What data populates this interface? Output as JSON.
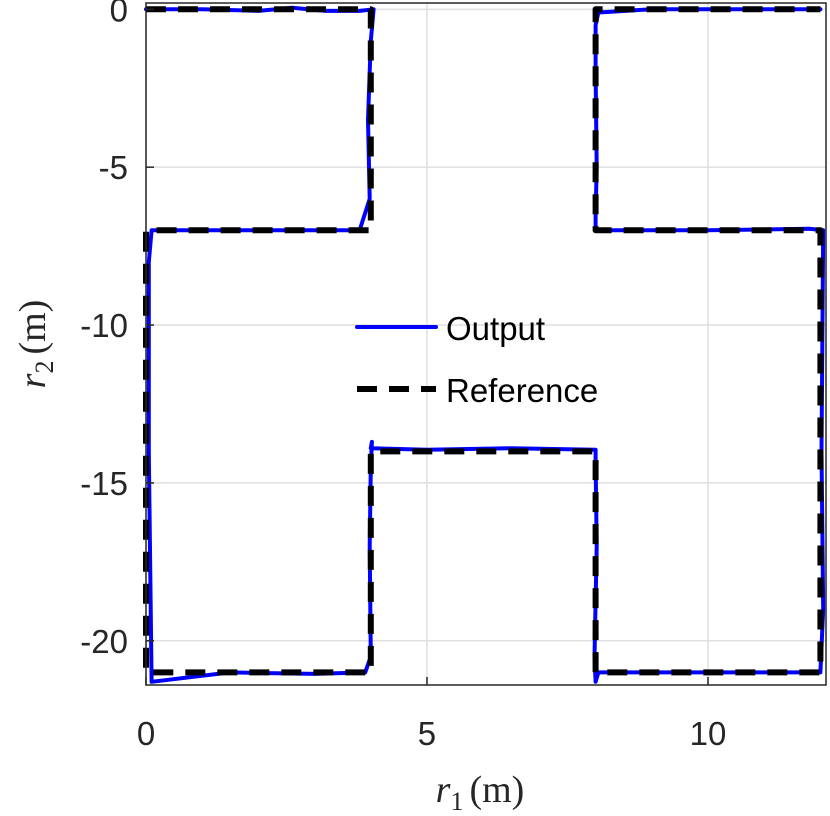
{
  "chart_data": {
    "type": "line",
    "title": "",
    "xlabel": "r_1 (m)",
    "ylabel": "r_2 (m)",
    "xlabel_parts": {
      "var": "r",
      "sub": "1",
      "unit": "(m)"
    },
    "ylabel_parts": {
      "var": "r",
      "sub": "2",
      "unit": "(m)"
    },
    "xlim": [
      0,
      12.1
    ],
    "ylim": [
      -21.4,
      0.2
    ],
    "xticks": [
      0,
      5,
      10
    ],
    "yticks": [
      0,
      -5,
      -10,
      -15,
      -20
    ],
    "xtick_labels": [
      "0",
      "5",
      "10"
    ],
    "ytick_labels": [
      "0",
      "-5",
      "-10",
      "-15",
      "-20"
    ],
    "grid": true,
    "legend": {
      "placement": "center",
      "entries": [
        "Output",
        "Reference"
      ]
    },
    "series": [
      {
        "name": "Output",
        "color": "#0000ff",
        "style": "solid",
        "x": [
          0.0,
          1.0,
          2.0,
          2.6,
          3.2,
          3.8,
          4.05,
          4.0,
          3.95,
          3.98,
          3.8,
          2.0,
          0.1,
          0.05,
          0.05,
          0.1,
          1.5,
          3.0,
          3.9,
          4.0,
          3.98,
          4.0,
          4.02,
          4.0,
          5.0,
          6.5,
          8.0,
          8.0,
          8.02,
          7.98,
          8.0,
          8.05,
          8.5,
          10.0,
          12.0,
          12.05,
          12.02,
          12.05,
          11.8,
          10.0,
          8.0,
          8.0,
          8.02,
          8.0,
          8.0,
          8.05,
          9.0,
          10.5,
          12.0
        ],
        "y": [
          0.0,
          0.0,
          -0.05,
          0.05,
          -0.05,
          -0.05,
          0.0,
          -1.0,
          -3.5,
          -6.0,
          -7.0,
          -7.0,
          -7.0,
          -8.0,
          -14.0,
          -21.3,
          -21.0,
          -21.05,
          -21.0,
          -20.5,
          -17.0,
          -14.5,
          -13.7,
          -13.9,
          -13.95,
          -13.9,
          -13.95,
          -14.3,
          -17.0,
          -20.5,
          -21.3,
          -21.0,
          -21.0,
          -21.0,
          -21.0,
          -19.0,
          -14.0,
          -7.0,
          -6.95,
          -7.0,
          -7.0,
          -6.5,
          -5.0,
          -2.0,
          -0.5,
          -0.1,
          0.0,
          0.0,
          0.0
        ]
      },
      {
        "name": "Reference",
        "color": "#000000",
        "style": "dashed",
        "x": [
          0,
          4,
          4,
          0,
          0,
          4,
          4,
          8,
          8,
          12,
          12,
          8,
          8,
          12
        ],
        "y": [
          0,
          0,
          -7,
          -7,
          -21,
          -21,
          -14,
          -14,
          -21,
          -21,
          -7,
          -7,
          0,
          0
        ]
      }
    ]
  }
}
